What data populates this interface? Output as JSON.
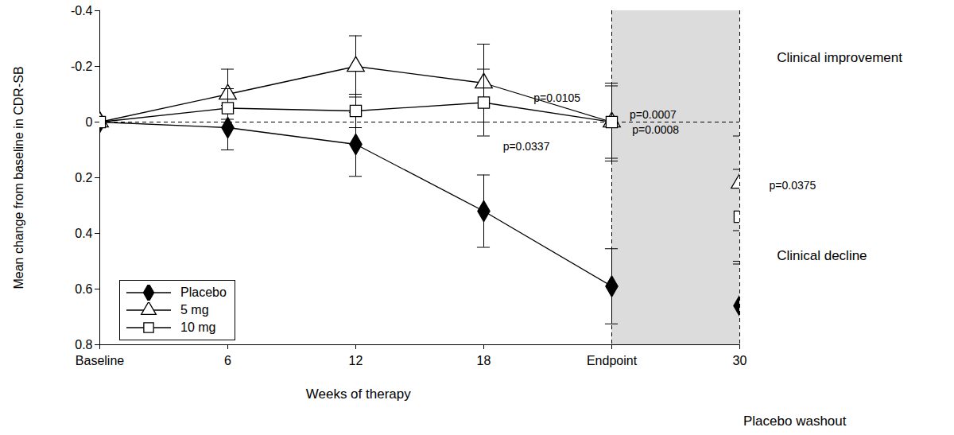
{
  "chart_data": {
    "type": "line",
    "xlabel": "Weeks of therapy",
    "ylabel": "Mean change from baseline in CDR-SB",
    "categories": [
      "Baseline",
      "6",
      "12",
      "18",
      "Endpoint",
      "30"
    ],
    "ylim": [
      0.8,
      -0.4
    ],
    "yticks": [
      -0.4,
      -0.2,
      0,
      0.2,
      0.4,
      0.6,
      0.8
    ],
    "legend": "lower left",
    "regions": [
      {
        "from": "Endpoint",
        "to": "30",
        "label": "Placebo washout"
      }
    ],
    "series": [
      {
        "name": "Placebo",
        "color": "#000000",
        "marker": "filled diamond",
        "values": [
          0,
          0.02,
          0.08,
          0.32,
          0.59,
          0.66
        ],
        "errors": [
          null,
          0.08,
          0.115,
          0.13,
          0.135,
          0.16
        ]
      },
      {
        "name": "5 mg",
        "color": "#000000",
        "marker": "open triangle",
        "values": [
          0,
          -0.1,
          -0.2,
          -0.14,
          0,
          0.22
        ],
        "errors": [
          null,
          0.09,
          0.11,
          0.14,
          0.14,
          0.17
        ]
      },
      {
        "name": "10 mg",
        "color": "#000000",
        "marker": "open square",
        "values": [
          0,
          -0.05,
          -0.04,
          -0.07,
          0,
          0.34
        ],
        "errors": [
          null,
          0.07,
          0.06,
          0.12,
          0.13,
          0.17
        ]
      }
    ],
    "annotations": [
      "p=0.0105",
      "p=0.0337",
      "p=0.0007",
      "p=0.0008",
      "p=0.0375",
      "Clinical improvement",
      "Clinical decline"
    ]
  }
}
